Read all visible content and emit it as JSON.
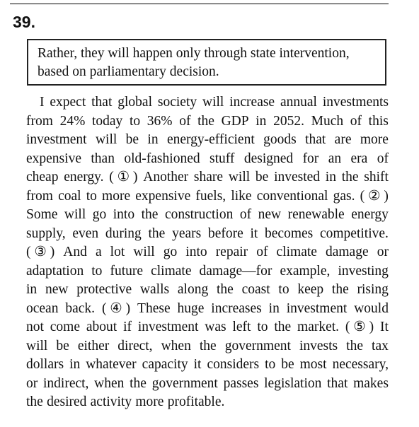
{
  "question": {
    "number": "39."
  },
  "given_sentence": {
    "lines": [
      "Rather, they will happen only through state intervention,",
      "based on parliamentary decision."
    ]
  },
  "passage": {
    "lines": [
      [
        "I",
        "expect",
        "that",
        "global",
        "society",
        "will",
        "increase",
        "annual",
        "investments"
      ],
      [
        "from",
        "24%",
        "today",
        "to",
        "36%",
        "of",
        "the",
        "GDP",
        "in",
        "2052.",
        "Much",
        "of",
        "this"
      ],
      [
        "investment",
        "will",
        "be",
        "in",
        "energy-efficient",
        "goods",
        "that",
        "are",
        "more"
      ],
      [
        "expensive",
        "than",
        "old-fashioned",
        "stuff",
        "designed",
        "for",
        "an",
        "era",
        "of"
      ],
      [
        "cheap",
        "energy.",
        "( ① )",
        "Another",
        "share",
        "will",
        "be",
        "invested",
        "in",
        "the",
        "shift"
      ],
      [
        "from",
        "coal",
        "to",
        "more",
        "expensive",
        "fuels,",
        "like",
        "conventional",
        "gas.",
        "( ② )"
      ],
      [
        "Some",
        "will",
        "go",
        "into",
        "the",
        "construction",
        "of",
        "new",
        "renewable",
        "energy"
      ],
      [
        "supply,",
        "even",
        "during",
        "the",
        "years",
        "before",
        "it",
        "becomes",
        "competitive."
      ],
      [
        "( ③ )",
        "And",
        "a",
        "lot",
        "will",
        "go",
        "into",
        "repair",
        "of",
        "climate",
        "damage",
        "or"
      ],
      [
        "adaptation",
        "to",
        "future",
        "climate",
        "damage—for",
        "example,",
        "investing"
      ],
      [
        "in",
        "new",
        "protective",
        "walls",
        "along",
        "the",
        "coast",
        "to",
        "keep",
        "the",
        "rising"
      ],
      [
        "ocean",
        "back.",
        "( ④ )",
        "These",
        "huge",
        "increases",
        "in",
        "investment",
        "would"
      ],
      [
        "not",
        "come",
        "about",
        "if",
        "investment",
        "was",
        "left",
        "to",
        "the",
        "market.",
        "( ⑤ )",
        "It"
      ],
      [
        "will",
        "be",
        "either",
        "direct,",
        "when",
        "the",
        "government",
        "invests",
        "the",
        "tax"
      ],
      [
        "dollars",
        "in",
        "whatever",
        "capacity",
        "it",
        "considers",
        "to",
        "be",
        "most",
        "necessary,"
      ],
      [
        "or",
        "indirect,",
        "when",
        "the",
        "government",
        "passes",
        "legislation",
        "that",
        "makes"
      ],
      [
        "the",
        "desired",
        "activity",
        "more",
        "profitable."
      ]
    ]
  }
}
